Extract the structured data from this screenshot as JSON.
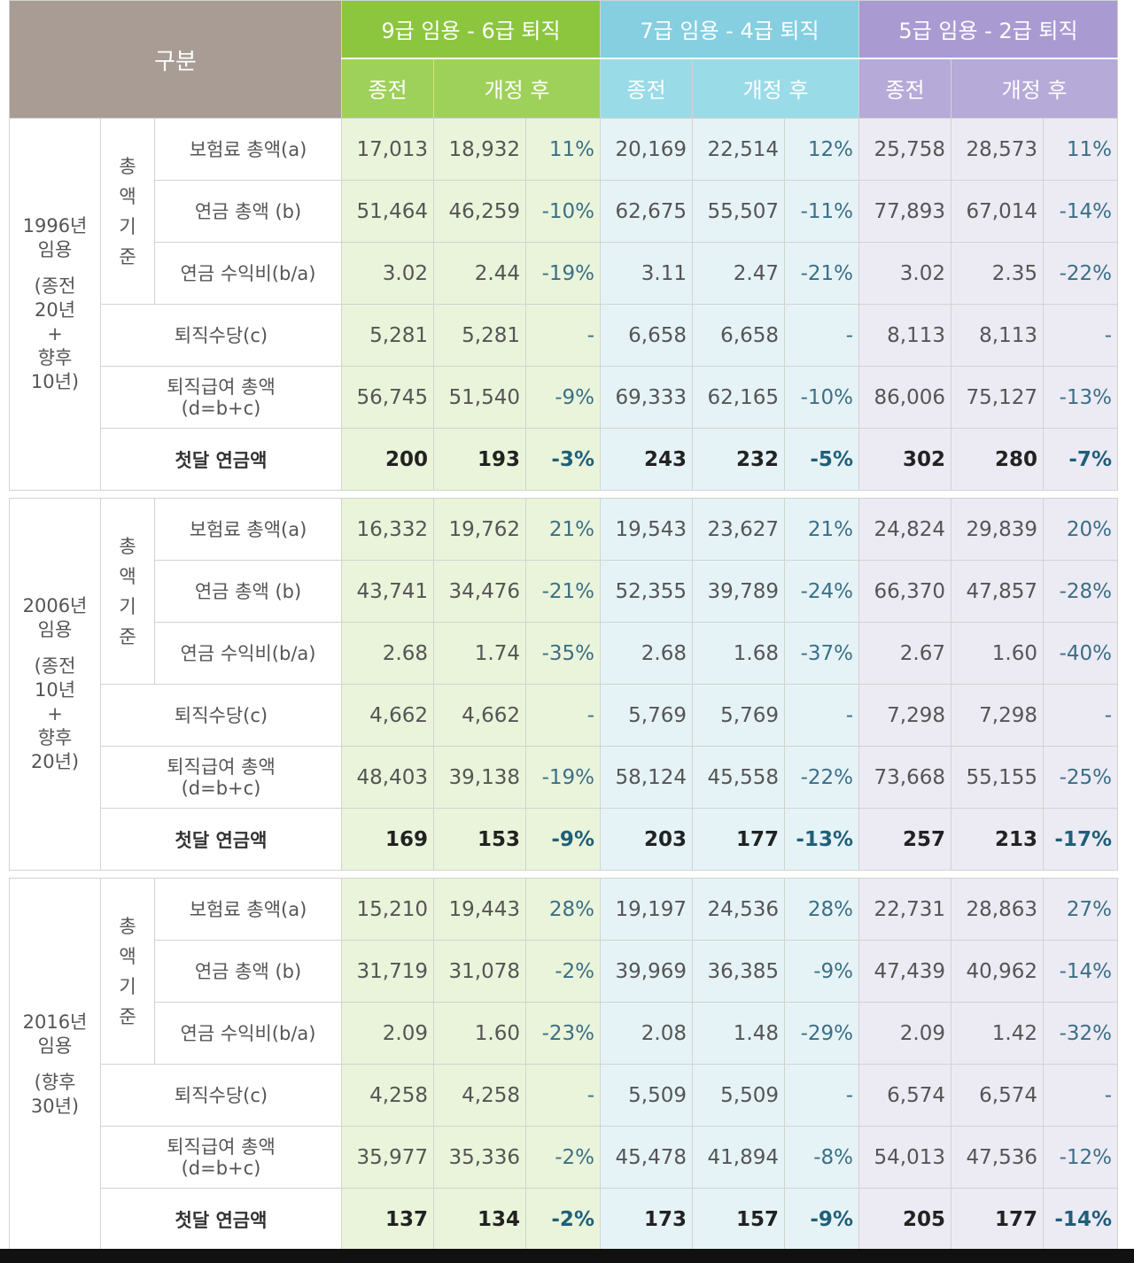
{
  "header": {
    "gubun": "구분",
    "groups": [
      "9급 임용 - 6급 퇴직",
      "7급 임용 - 4급 퇴직",
      "5급 임용 - 2급 퇴직"
    ],
    "before": "종전",
    "after": "개정 후"
  },
  "labels": {
    "axis_chars": [
      "총",
      "액",
      "기",
      "준"
    ],
    "premium": "보험료 총액(a)",
    "pension": "연금 총액 (b)",
    "ratio": "연금 수익비(b/a)",
    "retire_allow": "퇴직수당(c)",
    "retire_total_1": "퇴직급여 총액",
    "retire_total_2": "(d=b+c)",
    "first_month": "첫달 연금액"
  },
  "sections": [
    {
      "year_lines": [
        "1996년",
        "임용",
        "",
        "(종전",
        "20년",
        "+",
        "향후",
        "10년)"
      ],
      "premium": [
        "17,013",
        "18,932",
        "11%",
        "20,169",
        "22,514",
        "12%",
        "25,758",
        "28,573",
        "11%"
      ],
      "pension": [
        "51,464",
        "46,259",
        "-10%",
        "62,675",
        "55,507",
        "-11%",
        "77,893",
        "67,014",
        "-14%"
      ],
      "ratio": [
        "3.02",
        "2.44",
        "-19%",
        "3.11",
        "2.47",
        "-21%",
        "3.02",
        "2.35",
        "-22%"
      ],
      "retire_allow": [
        "5,281",
        "5,281",
        "-",
        "6,658",
        "6,658",
        "-",
        "8,113",
        "8,113",
        "-"
      ],
      "retire_total": [
        "56,745",
        "51,540",
        "-9%",
        "69,333",
        "62,165",
        "-10%",
        "86,006",
        "75,127",
        "-13%"
      ],
      "first_month": [
        "200",
        "193",
        "-3%",
        "243",
        "232",
        "-5%",
        "302",
        "280",
        "-7%"
      ]
    },
    {
      "year_lines": [
        "2006년",
        "임용",
        "",
        "(종전",
        "10년",
        "+",
        "향후",
        "20년)"
      ],
      "premium": [
        "16,332",
        "19,762",
        "21%",
        "19,543",
        "23,627",
        "21%",
        "24,824",
        "29,839",
        "20%"
      ],
      "pension": [
        "43,741",
        "34,476",
        "-21%",
        "52,355",
        "39,789",
        "-24%",
        "66,370",
        "47,857",
        "-28%"
      ],
      "ratio": [
        "2.68",
        "1.74",
        "-35%",
        "2.68",
        "1.68",
        "-37%",
        "2.67",
        "1.60",
        "-40%"
      ],
      "retire_allow": [
        "4,662",
        "4,662",
        "-",
        "5,769",
        "5,769",
        "-",
        "7,298",
        "7,298",
        "-"
      ],
      "retire_total": [
        "48,403",
        "39,138",
        "-19%",
        "58,124",
        "45,558",
        "-22%",
        "73,668",
        "55,155",
        "-25%"
      ],
      "first_month": [
        "169",
        "153",
        "-9%",
        "203",
        "177",
        "-13%",
        "257",
        "213",
        "-17%"
      ]
    },
    {
      "year_lines": [
        "2016년",
        "임용",
        "",
        "(향후",
        "30년)"
      ],
      "premium": [
        "15,210",
        "19,443",
        "28%",
        "19,197",
        "24,536",
        "28%",
        "22,731",
        "28,863",
        "27%"
      ],
      "pension": [
        "31,719",
        "31,078",
        "-2%",
        "39,969",
        "36,385",
        "-9%",
        "47,439",
        "40,962",
        "-14%"
      ],
      "ratio": [
        "2.09",
        "1.60",
        "-23%",
        "2.08",
        "1.48",
        "-29%",
        "2.09",
        "1.42",
        "-32%"
      ],
      "retire_allow": [
        "4,258",
        "4,258",
        "-",
        "5,509",
        "5,509",
        "-",
        "6,574",
        "6,574",
        "-"
      ],
      "retire_total": [
        "35,977",
        "35,336",
        "-2%",
        "45,478",
        "41,894",
        "-8%",
        "54,013",
        "47,536",
        "-12%"
      ],
      "first_month": [
        "137",
        "134",
        "-2%",
        "173",
        "157",
        "-9%",
        "205",
        "177",
        "-14%"
      ]
    }
  ]
}
